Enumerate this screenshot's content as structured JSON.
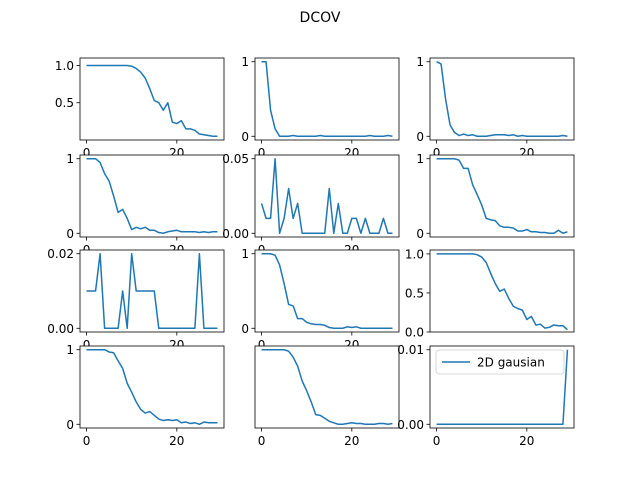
{
  "figure": {
    "title": "DCOV",
    "line_color": "#1f77b4"
  },
  "chart_data": [
    {
      "type": "line",
      "x": [
        0,
        1,
        2,
        3,
        4,
        5,
        6,
        7,
        8,
        9,
        10,
        11,
        12,
        13,
        14,
        15,
        16,
        17,
        18,
        19,
        20,
        21,
        22,
        23,
        24,
        25,
        26,
        27,
        28,
        29
      ],
      "y": [
        1.0,
        1.0,
        1.0,
        1.0,
        1.0,
        1.0,
        1.0,
        1.0,
        1.0,
        1.0,
        0.99,
        0.96,
        0.91,
        0.83,
        0.69,
        0.53,
        0.5,
        0.4,
        0.5,
        0.24,
        0.22,
        0.26,
        0.15,
        0.15,
        0.13,
        0.08,
        0.07,
        0.06,
        0.05,
        0.05
      ],
      "xlim": [
        -1.45,
        30.45
      ],
      "ylim": [
        0.0,
        1.1
      ],
      "xticks": [
        0,
        20
      ],
      "xtick_labels": [
        "0",
        "20"
      ],
      "yticks": [
        0.5,
        1.0
      ],
      "ytick_labels": [
        "0.5",
        "1.0"
      ]
    },
    {
      "type": "line",
      "x": [
        0,
        1,
        2,
        3,
        4,
        5,
        6,
        7,
        8,
        9,
        10,
        11,
        12,
        13,
        14,
        15,
        16,
        17,
        18,
        19,
        20,
        21,
        22,
        23,
        24,
        25,
        26,
        27,
        28,
        29
      ],
      "y": [
        1.0,
        1.0,
        0.35,
        0.1,
        0.0,
        0.0,
        0.0,
        0.01,
        0.0,
        0.0,
        0.0,
        0.0,
        0.0,
        0.01,
        0.0,
        0.0,
        0.0,
        0.0,
        0.0,
        0.0,
        0.0,
        0.0,
        0.0,
        0.0,
        0.01,
        0.0,
        0.0,
        0.0,
        0.01,
        0.0
      ],
      "xlim": [
        -1.45,
        30.45
      ],
      "ylim": [
        -0.05,
        1.05
      ],
      "xticks": [
        0,
        20
      ],
      "xtick_labels": [
        "0",
        "20"
      ],
      "yticks": [
        0,
        1
      ],
      "ytick_labels": [
        "0",
        "1"
      ]
    },
    {
      "type": "line",
      "x": [
        0,
        1,
        2,
        3,
        4,
        5,
        6,
        7,
        8,
        9,
        10,
        11,
        12,
        13,
        14,
        15,
        16,
        17,
        18,
        19,
        20,
        21,
        22,
        23,
        24,
        25,
        26,
        27,
        28,
        29
      ],
      "y": [
        1.0,
        0.97,
        0.5,
        0.15,
        0.05,
        0.01,
        0.03,
        0.01,
        0.02,
        0.0,
        0.0,
        0.0,
        0.01,
        0.02,
        0.02,
        0.02,
        0.01,
        0.02,
        0.0,
        0.01,
        0.0,
        0.0,
        0.0,
        0.0,
        0.0,
        0.0,
        0.0,
        0.0,
        0.01,
        0.0
      ],
      "xlim": [
        -1.45,
        30.45
      ],
      "ylim": [
        -0.05,
        1.05
      ],
      "xticks": [
        0,
        20
      ],
      "xtick_labels": [
        "0",
        "20"
      ],
      "yticks": [
        0,
        1
      ],
      "ytick_labels": [
        "0",
        "1"
      ]
    },
    {
      "type": "line",
      "x": [
        0,
        1,
        2,
        3,
        4,
        5,
        6,
        7,
        8,
        9,
        10,
        11,
        12,
        13,
        14,
        15,
        16,
        17,
        18,
        19,
        20,
        21,
        22,
        23,
        24,
        25,
        26,
        27,
        28,
        29
      ],
      "y": [
        1.0,
        1.0,
        1.0,
        0.95,
        0.8,
        0.7,
        0.5,
        0.28,
        0.32,
        0.2,
        0.05,
        0.08,
        0.06,
        0.08,
        0.04,
        0.04,
        0.01,
        0.0,
        0.02,
        0.03,
        0.04,
        0.02,
        0.02,
        0.02,
        0.02,
        0.01,
        0.02,
        0.01,
        0.02,
        0.02
      ],
      "xlim": [
        -1.45,
        30.45
      ],
      "ylim": [
        -0.05,
        1.05
      ],
      "xticks": [
        0,
        20
      ],
      "xtick_labels": [
        "0",
        "20"
      ],
      "yticks": [
        0,
        1
      ],
      "ytick_labels": [
        "0",
        "1"
      ]
    },
    {
      "type": "line",
      "x": [
        0,
        1,
        2,
        3,
        4,
        5,
        6,
        7,
        8,
        9,
        10,
        11,
        12,
        13,
        14,
        15,
        16,
        17,
        18,
        19,
        20,
        21,
        22,
        23,
        24,
        25,
        26,
        27,
        28,
        29
      ],
      "y": [
        0.02,
        0.01,
        0.01,
        0.05,
        0.0,
        0.01,
        0.03,
        0.01,
        0.02,
        0.0,
        0.0,
        0.0,
        0.0,
        0.0,
        0.0,
        0.03,
        0.0,
        0.02,
        0.0,
        0.0,
        0.01,
        0.01,
        0.0,
        0.01,
        0.0,
        0.0,
        0.0,
        0.01,
        0.0,
        0.0
      ],
      "xlim": [
        -1.45,
        30.45
      ],
      "ylim": [
        -0.0025,
        0.0525
      ],
      "xticks": [
        0,
        20
      ],
      "xtick_labels": [
        "0",
        "20"
      ],
      "yticks": [
        0.0,
        0.05
      ],
      "ytick_labels": [
        "0.00",
        "0.05"
      ]
    },
    {
      "type": "line",
      "x": [
        0,
        1,
        2,
        3,
        4,
        5,
        6,
        7,
        8,
        9,
        10,
        11,
        12,
        13,
        14,
        15,
        16,
        17,
        18,
        19,
        20,
        21,
        22,
        23,
        24,
        25,
        26,
        27,
        28,
        29
      ],
      "y": [
        1.0,
        1.0,
        1.0,
        1.0,
        1.0,
        0.98,
        0.87,
        0.87,
        0.65,
        0.52,
        0.38,
        0.2,
        0.18,
        0.17,
        0.1,
        0.08,
        0.08,
        0.07,
        0.03,
        0.03,
        0.05,
        0.02,
        0.02,
        0.01,
        0.01,
        0.0,
        0.0,
        0.04,
        0.0,
        0.02
      ],
      "xlim": [
        -1.45,
        30.45
      ],
      "ylim": [
        -0.05,
        1.05
      ],
      "xticks": [],
      "xtick_labels": [],
      "yticks": [
        0,
        1
      ],
      "ytick_labels": [
        "0",
        "1"
      ]
    },
    {
      "type": "line",
      "x": [
        0,
        1,
        2,
        3,
        4,
        5,
        6,
        7,
        8,
        9,
        10,
        11,
        12,
        13,
        14,
        15,
        16,
        17,
        18,
        19,
        20,
        21,
        22,
        23,
        24,
        25,
        26,
        27,
        28,
        29
      ],
      "y": [
        0.01,
        0.01,
        0.01,
        0.02,
        0.0,
        0.0,
        0.0,
        0.0,
        0.01,
        0.0,
        0.02,
        0.01,
        0.01,
        0.01,
        0.01,
        0.01,
        0.0,
        0.0,
        0.0,
        0.0,
        0.0,
        0.0,
        0.0,
        0.0,
        0.0,
        0.02,
        0.0,
        0.0,
        0.0,
        0.0
      ],
      "xlim": [
        -1.45,
        30.45
      ],
      "ylim": [
        -0.001,
        0.021
      ],
      "xticks": [
        0,
        20
      ],
      "xtick_labels": [
        "0",
        "20"
      ],
      "yticks": [
        0.0,
        0.02
      ],
      "ytick_labels": [
        "0.00",
        "0.02"
      ]
    },
    {
      "type": "line",
      "x": [
        0,
        1,
        2,
        3,
        4,
        5,
        6,
        7,
        8,
        9,
        10,
        11,
        12,
        13,
        14,
        15,
        16,
        17,
        18,
        19,
        20,
        21,
        22,
        23,
        24,
        25,
        26,
        27,
        28,
        29
      ],
      "y": [
        1.0,
        1.0,
        1.0,
        0.98,
        0.85,
        0.6,
        0.32,
        0.3,
        0.13,
        0.13,
        0.08,
        0.06,
        0.05,
        0.05,
        0.04,
        0.01,
        0.0,
        0.0,
        0.0,
        0.02,
        0.01,
        0.02,
        0.0,
        0.0,
        0.0,
        0.0,
        0.0,
        0.0,
        0.0,
        0.0
      ],
      "xlim": [
        -1.45,
        30.45
      ],
      "ylim": [
        -0.05,
        1.05
      ],
      "xticks": [
        0,
        20
      ],
      "xtick_labels": [
        "0",
        "20"
      ],
      "yticks": [
        0,
        1
      ],
      "ytick_labels": [
        "0",
        "1"
      ]
    },
    {
      "type": "line",
      "x": [
        0,
        1,
        2,
        3,
        4,
        5,
        6,
        7,
        8,
        9,
        10,
        11,
        12,
        13,
        14,
        15,
        16,
        17,
        18,
        19,
        20,
        21,
        22,
        23,
        24,
        25,
        26,
        27,
        28,
        29
      ],
      "y": [
        1.0,
        1.0,
        1.0,
        1.0,
        1.0,
        1.0,
        1.0,
        1.0,
        1.0,
        0.99,
        0.96,
        0.89,
        0.75,
        0.62,
        0.52,
        0.55,
        0.43,
        0.33,
        0.3,
        0.28,
        0.16,
        0.2,
        0.09,
        0.1,
        0.05,
        0.06,
        0.09,
        0.08,
        0.08,
        0.03
      ],
      "xlim": [
        -1.45,
        30.45
      ],
      "ylim": [
        0.0,
        1.05
      ],
      "xticks": [],
      "xtick_labels": [],
      "yticks": [
        0.0,
        0.5,
        1.0
      ],
      "ytick_labels": [
        "0.0",
        "0.5",
        "1.0"
      ]
    },
    {
      "type": "line",
      "x": [
        0,
        1,
        2,
        3,
        4,
        5,
        6,
        7,
        8,
        9,
        10,
        11,
        12,
        13,
        14,
        15,
        16,
        17,
        18,
        19,
        20,
        21,
        22,
        23,
        24,
        25,
        26,
        27,
        28,
        29
      ],
      "y": [
        1.0,
        1.0,
        1.0,
        1.0,
        1.0,
        0.97,
        0.96,
        0.85,
        0.75,
        0.55,
        0.43,
        0.3,
        0.2,
        0.15,
        0.17,
        0.12,
        0.07,
        0.05,
        0.06,
        0.05,
        0.06,
        0.02,
        0.03,
        0.01,
        0.02,
        0.0,
        0.03,
        0.02,
        0.02,
        0.02
      ],
      "xlim": [
        -1.45,
        30.45
      ],
      "ylim": [
        -0.05,
        1.05
      ],
      "xticks": [
        0,
        20
      ],
      "xtick_labels": [
        "0",
        "20"
      ],
      "yticks": [
        0,
        1
      ],
      "ytick_labels": [
        "0",
        "1"
      ]
    },
    {
      "type": "line",
      "x": [
        0,
        1,
        2,
        3,
        4,
        5,
        6,
        7,
        8,
        9,
        10,
        11,
        12,
        13,
        14,
        15,
        16,
        17,
        18,
        19,
        20,
        21,
        22,
        23,
        24,
        25,
        26,
        27,
        28,
        29
      ],
      "y": [
        1.0,
        1.0,
        1.0,
        1.0,
        1.0,
        1.0,
        0.98,
        0.9,
        0.78,
        0.58,
        0.45,
        0.3,
        0.13,
        0.12,
        0.08,
        0.04,
        0.02,
        0.0,
        0.0,
        0.01,
        0.02,
        0.01,
        0.01,
        0.0,
        0.0,
        0.0,
        0.01,
        0.01,
        0.0,
        0.01
      ],
      "xlim": [
        -1.45,
        30.45
      ],
      "ylim": [
        -0.05,
        1.05
      ],
      "xticks": [
        0,
        20
      ],
      "xtick_labels": [
        "0",
        "20"
      ],
      "yticks": [],
      "ytick_labels": []
    },
    {
      "type": "line",
      "x": [
        0,
        1,
        2,
        3,
        4,
        5,
        6,
        7,
        8,
        9,
        10,
        11,
        12,
        13,
        14,
        15,
        16,
        17,
        18,
        19,
        20,
        21,
        22,
        23,
        24,
        25,
        26,
        27,
        28,
        29
      ],
      "y": [
        0,
        0,
        0,
        0,
        0,
        0,
        0,
        0,
        0,
        0,
        0,
        0,
        0,
        0,
        0,
        0,
        0,
        0,
        0,
        0,
        0,
        0,
        0,
        0,
        0,
        0,
        0,
        0,
        0,
        0.01
      ],
      "xlim": [
        -1.45,
        30.45
      ],
      "ylim": [
        -0.0005,
        0.0105
      ],
      "xticks": [
        0,
        20
      ],
      "xtick_labels": [
        "0",
        "20"
      ],
      "yticks": [
        0.0,
        0.01
      ],
      "ytick_labels": [
        "0.00",
        "0.01"
      ],
      "legend": {
        "label": "2D gausian",
        "loc": "upper left"
      }
    }
  ]
}
